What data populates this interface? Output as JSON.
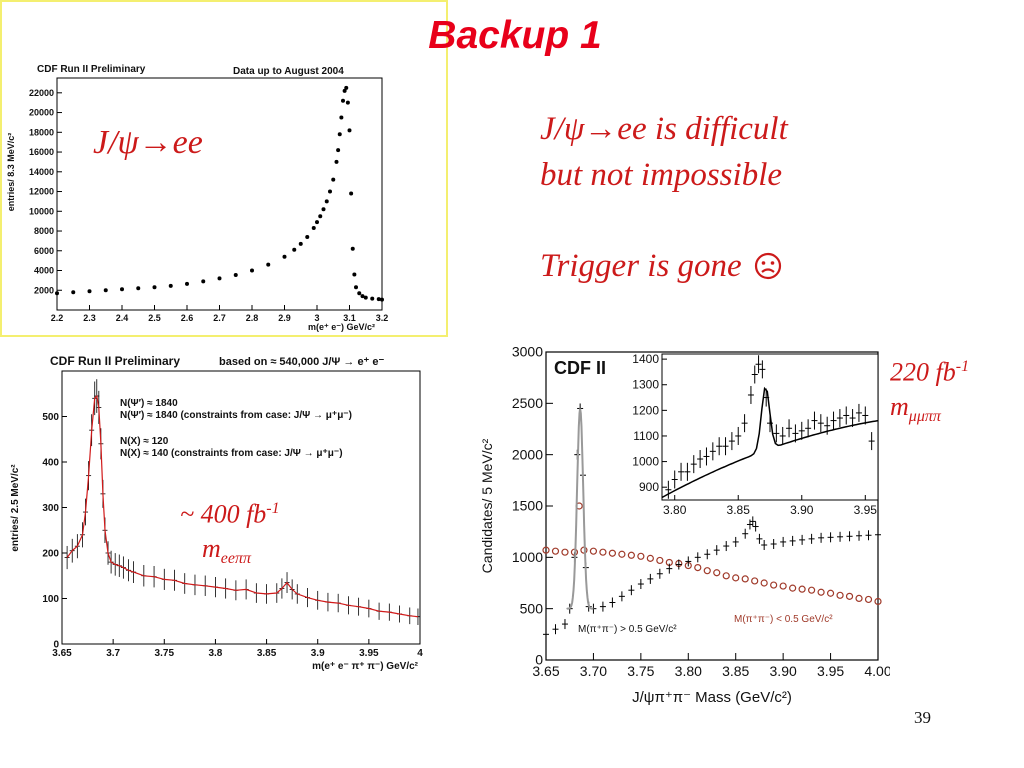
{
  "slide": {
    "title": "Backup 1",
    "note_line1": "J/ψ→ee  is difficult",
    "note_line2": "but not impossible",
    "note_trigger": "Trigger is gone",
    "trigger_icon": "frown-face-icon",
    "label_jpsi_ee": "J/ψ→ee",
    "lumi_220": "220 fb",
    "lumi_220_sup": "-1",
    "mass_220": "m",
    "mass_220_sub": "μμππ",
    "lumi_400": "~ 400 fb",
    "lumi_400_sup": "-1",
    "mass_400": "m",
    "mass_400_sub": "eeππ",
    "page_number": "39",
    "accent_color": "#e8001a"
  },
  "chart_data": [
    {
      "type": "scatter",
      "title": "CDF Run II Preliminary",
      "subtitle": "Data up to August 2004",
      "xlabel": "m(e⁺ e⁻) GeV/c²",
      "ylabel": "entries/ 8.3 MeV/c²",
      "xlim": [
        2.2,
        3.2
      ],
      "ylim": [
        0,
        23500
      ],
      "xticks": [
        "2.2",
        "2.3",
        "2.4",
        "2.5",
        "2.6",
        "2.7",
        "2.8",
        "2.9",
        "3",
        "3.1",
        "3.2"
      ],
      "yticks": [
        "2000",
        "4000",
        "6000",
        "8000",
        "10000",
        "12000",
        "14000",
        "16000",
        "18000",
        "20000",
        "22000"
      ],
      "series": [
        {
          "color": "#000000",
          "x": [
            2.2,
            2.25,
            2.3,
            2.35,
            2.4,
            2.45,
            2.5,
            2.55,
            2.6,
            2.65,
            2.7,
            2.75,
            2.8,
            2.85,
            2.9,
            2.93,
            2.95,
            2.97,
            2.99,
            3.0,
            3.01,
            3.02,
            3.03,
            3.04,
            3.05,
            3.06,
            3.065,
            3.07,
            3.075,
            3.08,
            3.085,
            3.09,
            3.095,
            3.1,
            3.105,
            3.11,
            3.115,
            3.12,
            3.13,
            3.14,
            3.15,
            3.17,
            3.19,
            3.2
          ],
          "y": [
            1700,
            1800,
            1900,
            2000,
            2100,
            2200,
            2300,
            2450,
            2650,
            2900,
            3200,
            3550,
            4000,
            4600,
            5400,
            6100,
            6700,
            7400,
            8300,
            8900,
            9500,
            10200,
            11000,
            12000,
            13200,
            15000,
            16200,
            17800,
            19500,
            21200,
            22200,
            22500,
            21000,
            18200,
            11800,
            6200,
            3600,
            2300,
            1700,
            1400,
            1250,
            1150,
            1100,
            1050
          ]
        }
      ]
    },
    {
      "type": "line",
      "title": "CDF Run II Preliminary",
      "subtitle": "based on ≈ 540,000 J/Ψ → e⁺ e⁻",
      "xlabel": "m(e⁺ e⁻ π⁺ π⁻) GeV/c²",
      "ylabel": "entries/ 2.5 MeV/c²",
      "xlim": [
        3.65,
        4.0
      ],
      "ylim": [
        0,
        600
      ],
      "xticks": [
        "3.65",
        "3.7",
        "3.75",
        "3.8",
        "3.85",
        "3.9",
        "3.95",
        "4"
      ],
      "yticks": [
        "0",
        "100",
        "200",
        "300",
        "400",
        "500"
      ],
      "annotations": [
        "N(Ψ′) ≈ 1840",
        "N(Ψ′) ≈ 1840 (constraints from case: J/Ψ → μ⁺μ⁻)",
        "N(X) ≈ 120",
        "N(X) ≈ 140  (constraints from case: J/Ψ → μ⁺μ⁻)"
      ],
      "series": [
        {
          "color": "#000000",
          "x": [
            3.655,
            3.66,
            3.665,
            3.67,
            3.673,
            3.676,
            3.679,
            3.682,
            3.684,
            3.686,
            3.688,
            3.69,
            3.692,
            3.695,
            3.698,
            3.702,
            3.706,
            3.71,
            3.715,
            3.72,
            3.73,
            3.74,
            3.75,
            3.76,
            3.77,
            3.78,
            3.79,
            3.8,
            3.81,
            3.82,
            3.83,
            3.84,
            3.85,
            3.86,
            3.865,
            3.87,
            3.875,
            3.88,
            3.89,
            3.9,
            3.91,
            3.92,
            3.93,
            3.94,
            3.95,
            3.96,
            3.97,
            3.98,
            3.99,
            3.998
          ],
          "y": [
            190,
            205,
            215,
            240,
            290,
            370,
            470,
            540,
            545,
            520,
            440,
            330,
            250,
            200,
            180,
            175,
            172,
            168,
            162,
            158,
            150,
            148,
            142,
            140,
            133,
            130,
            128,
            125,
            122,
            118,
            120,
            112,
            110,
            112,
            122,
            135,
            120,
            110,
            102,
            96,
            92,
            90,
            85,
            82,
            78,
            72,
            70,
            66,
            62,
            60
          ]
        }
      ]
    },
    {
      "type": "line",
      "title": "CDF II",
      "xlabel": "J/ψπ⁺π⁻ Mass  (GeV/c²)",
      "ylabel": "Candidates/ 5 MeV/c²",
      "xlim": [
        3.65,
        4.0
      ],
      "ylim": [
        0,
        3000
      ],
      "xticks": [
        "3.65",
        "3.70",
        "3.75",
        "3.80",
        "3.85",
        "3.90",
        "3.95",
        "4.00"
      ],
      "yticks": [
        "0",
        "500",
        "1000",
        "1500",
        "2000",
        "2500",
        "3000"
      ],
      "legend": [
        "M(π⁺π⁻) > 0.5 GeV/c²",
        "M(π⁺π⁻) < 0.5 GeV/c²"
      ],
      "series": [
        {
          "name": "M(π⁺π⁻) > 0.5 GeV/c²",
          "color": "#000000",
          "x": [
            3.65,
            3.66,
            3.67,
            3.675,
            3.68,
            3.683,
            3.686,
            3.689,
            3.692,
            3.695,
            3.7,
            3.71,
            3.72,
            3.73,
            3.74,
            3.75,
            3.76,
            3.77,
            3.78,
            3.79,
            3.8,
            3.81,
            3.82,
            3.83,
            3.84,
            3.85,
            3.86,
            3.865,
            3.868,
            3.871,
            3.875,
            3.88,
            3.89,
            3.9,
            3.91,
            3.92,
            3.93,
            3.94,
            3.95,
            3.96,
            3.97,
            3.98,
            3.99,
            4.0
          ],
          "y": [
            250,
            300,
            350,
            500,
            1000,
            2000,
            2450,
            1800,
            900,
            520,
            500,
            520,
            560,
            620,
            680,
            740,
            790,
            840,
            890,
            930,
            960,
            1000,
            1030,
            1070,
            1110,
            1150,
            1230,
            1320,
            1350,
            1300,
            1180,
            1120,
            1130,
            1150,
            1160,
            1170,
            1180,
            1190,
            1195,
            1200,
            1205,
            1210,
            1215,
            1220
          ]
        },
        {
          "name": "M(π⁺π⁻) < 0.5 GeV/c²",
          "color": "#a03a2a",
          "x": [
            3.65,
            3.66,
            3.67,
            3.68,
            3.685,
            3.69,
            3.7,
            3.71,
            3.72,
            3.73,
            3.74,
            3.75,
            3.76,
            3.77,
            3.78,
            3.79,
            3.8,
            3.81,
            3.82,
            3.83,
            3.84,
            3.85,
            3.86,
            3.87,
            3.88,
            3.89,
            3.9,
            3.91,
            3.92,
            3.93,
            3.94,
            3.95,
            3.96,
            3.97,
            3.98,
            3.99,
            4.0
          ],
          "y": [
            1070,
            1060,
            1050,
            1050,
            1500,
            1070,
            1060,
            1050,
            1040,
            1030,
            1020,
            1010,
            990,
            970,
            950,
            940,
            920,
            900,
            870,
            850,
            820,
            800,
            790,
            770,
            750,
            730,
            720,
            700,
            690,
            680,
            660,
            650,
            630,
            620,
            600,
            590,
            570
          ]
        }
      ],
      "inset": {
        "xlim": [
          3.79,
          3.96
        ],
        "ylim": [
          850,
          1420
        ],
        "xticks": [
          "3.80",
          "3.85",
          "3.90",
          "3.95"
        ],
        "yticks": [
          "900",
          "1000",
          "1100",
          "1200",
          "1300",
          "1400"
        ],
        "x": [
          3.795,
          3.8,
          3.805,
          3.81,
          3.815,
          3.82,
          3.825,
          3.83,
          3.835,
          3.84,
          3.845,
          3.85,
          3.855,
          3.86,
          3.863,
          3.866,
          3.869,
          3.872,
          3.875,
          3.88,
          3.885,
          3.89,
          3.895,
          3.9,
          3.905,
          3.91,
          3.915,
          3.92,
          3.925,
          3.93,
          3.935,
          3.94,
          3.945,
          3.95,
          3.955
        ],
        "y": [
          890,
          930,
          960,
          960,
          990,
          1010,
          1020,
          1040,
          1060,
          1060,
          1080,
          1100,
          1150,
          1260,
          1340,
          1380,
          1360,
          1250,
          1150,
          1110,
          1100,
          1130,
          1110,
          1120,
          1130,
          1160,
          1150,
          1140,
          1160,
          1170,
          1180,
          1170,
          1190,
          1180,
          1080
        ]
      }
    }
  ]
}
